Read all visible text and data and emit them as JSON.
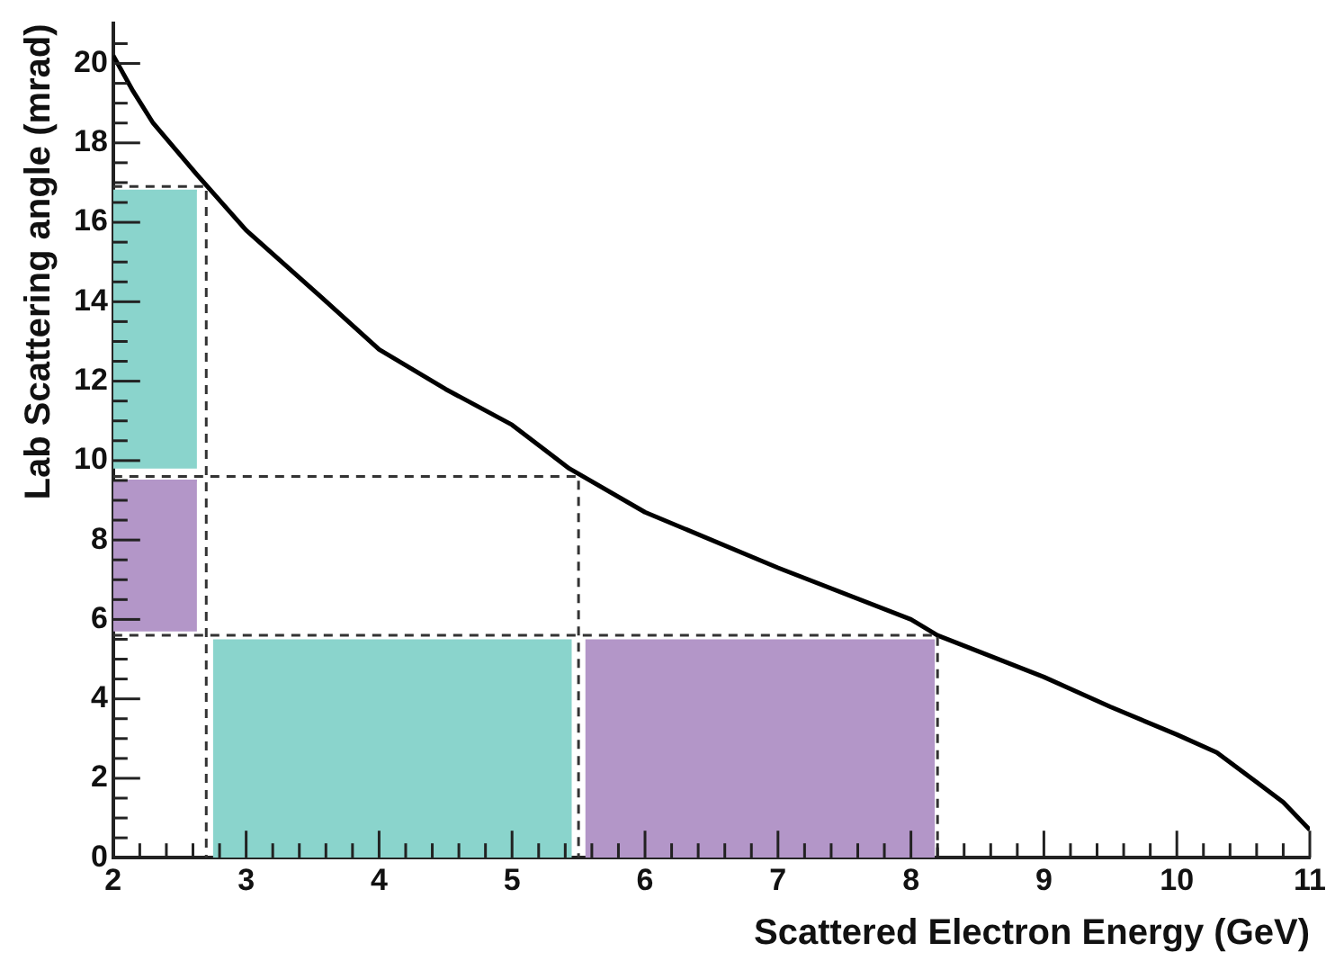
{
  "chart_data": {
    "type": "line",
    "xlabel": "Scattered Electron Energy (GeV)",
    "ylabel": "Lab Scattering angle (mrad)",
    "xlim": [
      2,
      11
    ],
    "ylim": [
      0,
      21
    ],
    "xticks": [
      2,
      {
        "value": 2.2,
        "label": null
      },
      {
        "value": 2.4,
        "label": null
      },
      {
        "value": 2.6,
        "label": null
      },
      {
        "value": 2.8,
        "label": null
      },
      3,
      {
        "value": 3.2,
        "label": null
      },
      {
        "value": 3.4,
        "label": null
      },
      {
        "value": 3.6,
        "label": null
      },
      {
        "value": 3.8,
        "label": null
      },
      4,
      {
        "value": 4.2,
        "label": null
      },
      {
        "value": 4.4,
        "label": null
      },
      {
        "value": 4.6,
        "label": null
      },
      {
        "value": 4.8,
        "label": null
      },
      5,
      {
        "value": 5.2,
        "label": null
      },
      {
        "value": 5.4,
        "label": null
      },
      {
        "value": 5.6,
        "label": null
      },
      {
        "value": 5.8,
        "label": null
      },
      6,
      {
        "value": 6.2,
        "label": null
      },
      {
        "value": 6.4,
        "label": null
      },
      {
        "value": 6.6,
        "label": null
      },
      {
        "value": 6.8,
        "label": null
      },
      7,
      {
        "value": 7.2,
        "label": null
      },
      {
        "value": 7.4,
        "label": null
      },
      {
        "value": 7.6,
        "label": null
      },
      {
        "value": 7.8,
        "label": null
      },
      8,
      {
        "value": 8.2,
        "label": null
      },
      {
        "value": 8.4,
        "label": null
      },
      {
        "value": 8.6,
        "label": null
      },
      {
        "value": 8.8,
        "label": null
      },
      9,
      {
        "value": 9.2,
        "label": null
      },
      {
        "value": 9.4,
        "label": null
      },
      {
        "value": 9.6,
        "label": null
      },
      {
        "value": 9.8,
        "label": null
      },
      10,
      {
        "value": 10.2,
        "label": null
      },
      {
        "value": 10.4,
        "label": null
      },
      {
        "value": 10.6,
        "label": null
      },
      {
        "value": 10.8,
        "label": null
      },
      11
    ],
    "yticks": [
      0,
      {
        "value": 0.5,
        "label": null
      },
      {
        "value": 1,
        "label": null
      },
      {
        "value": 1.5,
        "label": null
      },
      2,
      {
        "value": 2.5,
        "label": null
      },
      {
        "value": 3,
        "label": null
      },
      {
        "value": 3.5,
        "label": null
      },
      4,
      {
        "value": 4.5,
        "label": null
      },
      {
        "value": 5,
        "label": null
      },
      {
        "value": 5.5,
        "label": null
      },
      6,
      {
        "value": 6.5,
        "label": null
      },
      {
        "value": 7,
        "label": null
      },
      {
        "value": 7.5,
        "label": null
      },
      8,
      {
        "value": 8.5,
        "label": null
      },
      {
        "value": 9,
        "label": null
      },
      {
        "value": 9.5,
        "label": null
      },
      10,
      {
        "value": 10.5,
        "label": null
      },
      {
        "value": 11,
        "label": null
      },
      {
        "value": 11.5,
        "label": null
      },
      12,
      {
        "value": 12.5,
        "label": null
      },
      {
        "value": 13,
        "label": null
      },
      {
        "value": 13.5,
        "label": null
      },
      14,
      {
        "value": 14.5,
        "label": null
      },
      {
        "value": 15,
        "label": null
      },
      {
        "value": 15.5,
        "label": null
      },
      16,
      {
        "value": 16.5,
        "label": null
      },
      {
        "value": 17,
        "label": null
      },
      {
        "value": 17.5,
        "label": null
      },
      18,
      {
        "value": 18.5,
        "label": null
      },
      {
        "value": 19,
        "label": null
      },
      {
        "value": 19.5,
        "label": null
      },
      20,
      {
        "value": 20.5,
        "label": null
      }
    ],
    "grid": false,
    "legend": false,
    "marker": "none",
    "series": [
      {
        "color": "#8ad4cc",
        "x": [
          2,
          2.63
        ],
        "values": [
          16.8,
          16.8
        ],
        "lower": [
          9.8,
          9.8
        ],
        "upper": [
          16.8,
          16.8
        ]
      },
      {
        "color": "#b396c8",
        "x": [
          2,
          2.63
        ],
        "values": [
          9.5,
          9.5
        ],
        "lower": [
          5.7,
          5.7
        ],
        "upper": [
          9.5,
          9.5
        ]
      },
      {
        "type": "area",
        "color": "#8ad4cc",
        "x": [
          2.75,
          5.45
        ],
        "values": [
          5.5,
          5.5
        ]
      },
      {
        "type": "area",
        "color": "#b396c8",
        "x": [
          5.55,
          8.18
        ],
        "values": [
          5.5,
          5.5
        ]
      },
      {
        "color": "#333333",
        "line_style": "dashed",
        "x": [
          2,
          2.7,
          2.7
        ],
        "values": [
          16.9,
          16.9,
          0
        ]
      },
      {
        "color": "#333333",
        "line_style": "dashed",
        "x": [
          2,
          5.5,
          5.5
        ],
        "values": [
          9.6,
          9.6,
          0
        ]
      },
      {
        "color": "#333333",
        "line_style": "dashed",
        "x": [
          2,
          8.2,
          8.2
        ],
        "values": [
          5.6,
          5.6,
          0
        ]
      },
      {
        "color": "#000000",
        "x": [
          2,
          2.15,
          2.3,
          2.63,
          3,
          3.57,
          4,
          4.5,
          5,
          5.43,
          6,
          7,
          8,
          8.2,
          9,
          9.5,
          10,
          10.3,
          10.6,
          10.8,
          11
        ],
        "values": [
          20.2,
          19.3,
          18.5,
          17.2,
          15.8,
          14.1,
          12.8,
          11.8,
          10.9,
          9.8,
          8.7,
          7.3,
          6,
          5.6,
          4.55,
          3.8,
          3.1,
          2.65,
          1.9,
          1.4,
          0.7
        ]
      }
    ]
  }
}
